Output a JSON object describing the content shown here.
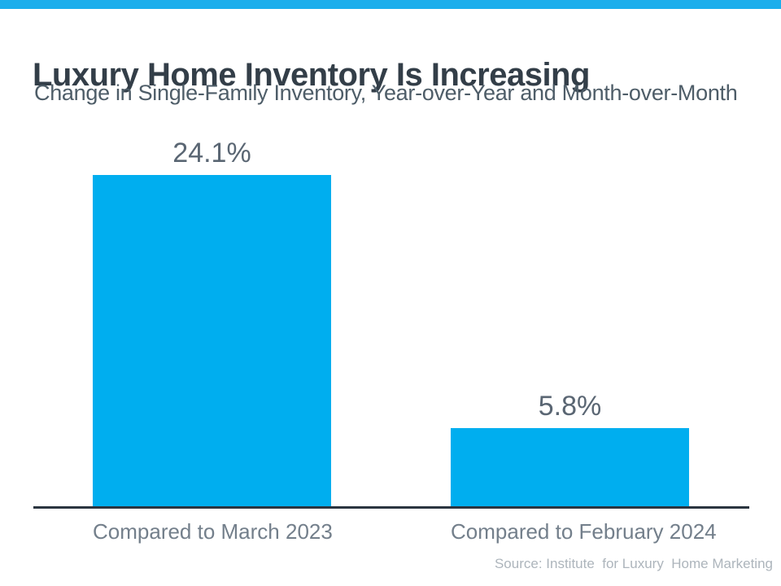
{
  "page": {
    "title": "Luxury Home Inventory Is Increasing",
    "subtitle": "Change in Single-Family Inventory, Year-over-Year and Month-over-Month",
    "source": "Source: Institute  for Luxury  Home Marketing"
  },
  "theme": {
    "top_strip_color": "#1BAEEC",
    "bar_color": "#00AEEF",
    "title_color": "#333E48",
    "subtitle_color": "#4E5D68",
    "value_label_color": "#5A6673",
    "category_label_color": "#737F8B",
    "axis_color": "#2B3540",
    "source_color": "#ADB5BC"
  },
  "chart_data": {
    "type": "bar",
    "categories": [
      "Compared to March 2023",
      "Compared to February 2024"
    ],
    "values": [
      24.1,
      5.8
    ],
    "value_labels": [
      "24.1%",
      "5.8%"
    ],
    "title": "Luxury Home Inventory Is Increasing",
    "subtitle": "Change in Single-Family Inventory, Year-over-Year and Month-over-Month",
    "xlabel": "",
    "ylabel": "",
    "ylim": [
      0,
      24.1
    ],
    "grid": false,
    "legend": false,
    "bar_color": "#00AEEF",
    "source": "Source: Institute  for Luxury  Home Marketing"
  }
}
